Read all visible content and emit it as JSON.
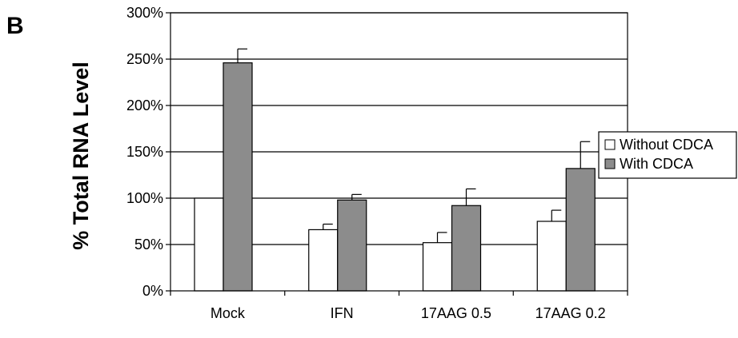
{
  "panel_label": "B",
  "chart_data": {
    "type": "bar",
    "ylabel": "% Total RNA Level",
    "categories": [
      "Mock",
      "IFN",
      "17AAG 0.5",
      "17AAG 0.2"
    ],
    "y_ticks": [
      "0%",
      "50%",
      "100%",
      "150%",
      "200%",
      "250%",
      "300%"
    ],
    "ylim": [
      0,
      300
    ],
    "y_unit": "%",
    "grid": true,
    "legend_position": "right",
    "series": [
      {
        "name": "Without CDCA",
        "color": "#ffffff",
        "values": [
          100,
          66,
          52,
          75
        ],
        "errors": [
          0,
          6,
          11,
          12
        ]
      },
      {
        "name": "With CDCA",
        "color": "#8c8c8c",
        "values": [
          246,
          98,
          92,
          132
        ],
        "errors": [
          15,
          6,
          18,
          29
        ]
      }
    ]
  }
}
